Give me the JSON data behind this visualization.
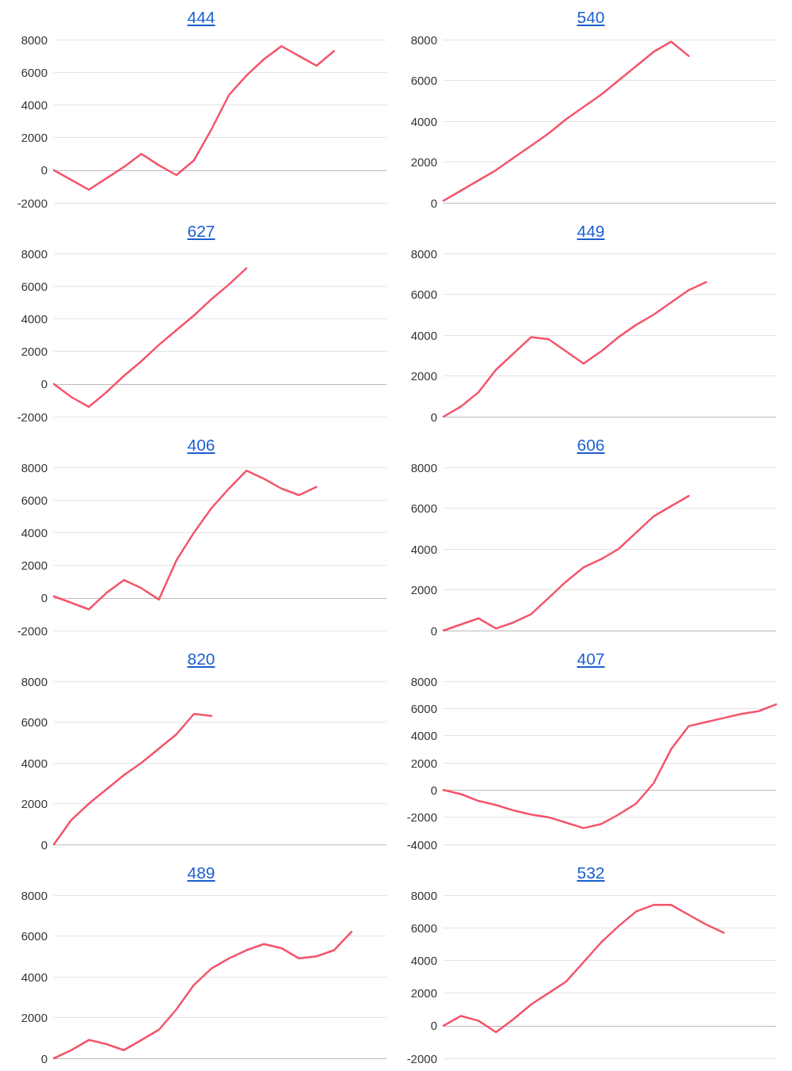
{
  "chart_data": [
    {
      "type": "line",
      "title": "444",
      "categories": [
        null,
        null,
        null,
        null,
        null,
        null,
        null,
        null,
        null,
        null,
        null,
        null,
        null,
        null,
        null,
        null,
        null,
        null,
        null,
        null
      ],
      "series": [
        {
          "color": "#f4546c",
          "values": [
            0,
            -600,
            -1200,
            -500,
            200,
            1000,
            300,
            -300,
            600,
            2500,
            4600,
            5800,
            6800,
            7600,
            7000,
            6400,
            7300,
            null,
            null,
            null
          ]
        }
      ],
      "ylim": [
        -2000,
        8000
      ],
      "yticks": [
        -2000,
        0,
        2000,
        4000,
        6000,
        8000
      ],
      "grid": "y",
      "marker": "none",
      "line_style": "solid",
      "tick_labels": "y"
    },
    {
      "type": "line",
      "title": "540",
      "categories": [
        null,
        null,
        null,
        null,
        null,
        null,
        null,
        null,
        null,
        null,
        null,
        null,
        null,
        null,
        null,
        null,
        null,
        null,
        null,
        null
      ],
      "series": [
        {
          "color": "#f4546c",
          "values": [
            100,
            600,
            1100,
            1600,
            2200,
            2800,
            3400,
            4100,
            4700,
            5300,
            6000,
            6700,
            7400,
            7900,
            7200,
            null,
            null,
            null,
            null,
            null
          ]
        }
      ],
      "ylim": [
        0,
        8000
      ],
      "yticks": [
        0,
        2000,
        4000,
        6000,
        8000
      ],
      "grid": "y",
      "marker": "none",
      "line_style": "solid",
      "tick_labels": "y"
    },
    {
      "type": "line",
      "title": "627",
      "categories": [
        null,
        null,
        null,
        null,
        null,
        null,
        null,
        null,
        null,
        null,
        null,
        null,
        null,
        null,
        null,
        null,
        null,
        null,
        null,
        null
      ],
      "series": [
        {
          "color": "#f4546c",
          "values": [
            0,
            -800,
            -1400,
            -500,
            500,
            1400,
            2400,
            3300,
            4200,
            5200,
            6100,
            7100,
            null,
            null,
            null,
            null,
            null,
            null,
            null,
            null
          ]
        }
      ],
      "ylim": [
        -2000,
        8000
      ],
      "yticks": [
        -2000,
        0,
        2000,
        4000,
        6000,
        8000
      ],
      "grid": "y",
      "marker": "none",
      "line_style": "solid",
      "tick_labels": "y"
    },
    {
      "type": "line",
      "title": "449",
      "categories": [
        null,
        null,
        null,
        null,
        null,
        null,
        null,
        null,
        null,
        null,
        null,
        null,
        null,
        null,
        null,
        null,
        null,
        null,
        null,
        null
      ],
      "series": [
        {
          "color": "#f4546c",
          "values": [
            0,
            500,
            1200,
            2300,
            3100,
            3900,
            3800,
            3200,
            2600,
            3200,
            3900,
            4500,
            5000,
            5600,
            6200,
            6600,
            null,
            null,
            null,
            null
          ]
        }
      ],
      "ylim": [
        0,
        8000
      ],
      "yticks": [
        0,
        2000,
        4000,
        6000,
        8000
      ],
      "grid": "y",
      "marker": "none",
      "line_style": "solid",
      "tick_labels": "y"
    },
    {
      "type": "line",
      "title": "406",
      "categories": [
        null,
        null,
        null,
        null,
        null,
        null,
        null,
        null,
        null,
        null,
        null,
        null,
        null,
        null,
        null,
        null,
        null,
        null,
        null,
        null
      ],
      "series": [
        {
          "color": "#f4546c",
          "values": [
            100,
            -300,
            -700,
            300,
            1100,
            600,
            -100,
            2300,
            4000,
            5500,
            6700,
            7800,
            7300,
            6700,
            6300,
            6800,
            null,
            null,
            null,
            null
          ]
        }
      ],
      "ylim": [
        -2000,
        8000
      ],
      "yticks": [
        -2000,
        0,
        2000,
        4000,
        6000,
        8000
      ],
      "grid": "y",
      "marker": "none",
      "line_style": "solid",
      "tick_labels": "y"
    },
    {
      "type": "line",
      "title": "606",
      "categories": [
        null,
        null,
        null,
        null,
        null,
        null,
        null,
        null,
        null,
        null,
        null,
        null,
        null,
        null,
        null,
        null,
        null,
        null,
        null,
        null
      ],
      "series": [
        {
          "color": "#f4546c",
          "values": [
            0,
            300,
            600,
            100,
            400,
            800,
            1600,
            2400,
            3100,
            3500,
            4000,
            4800,
            5600,
            6100,
            6600,
            null,
            null,
            null,
            null,
            null
          ]
        }
      ],
      "ylim": [
        0,
        8000
      ],
      "yticks": [
        0,
        2000,
        4000,
        6000,
        8000
      ],
      "grid": "y",
      "marker": "none",
      "line_style": "solid",
      "tick_labels": "y"
    },
    {
      "type": "line",
      "title": "820",
      "categories": [
        null,
        null,
        null,
        null,
        null,
        null,
        null,
        null,
        null,
        null,
        null,
        null,
        null,
        null,
        null,
        null,
        null,
        null,
        null,
        null
      ],
      "series": [
        {
          "color": "#f4546c",
          "values": [
            0,
            1200,
            2000,
            2700,
            3400,
            4000,
            4700,
            5400,
            6400,
            6300,
            null,
            null,
            null,
            null,
            null,
            null,
            null,
            null,
            null,
            null
          ]
        }
      ],
      "ylim": [
        0,
        8000
      ],
      "yticks": [
        0,
        2000,
        4000,
        6000,
        8000
      ],
      "grid": "y",
      "marker": "none",
      "line_style": "solid",
      "tick_labels": "y"
    },
    {
      "type": "line",
      "title": "407",
      "categories": [
        null,
        null,
        null,
        null,
        null,
        null,
        null,
        null,
        null,
        null,
        null,
        null,
        null,
        null,
        null,
        null,
        null,
        null,
        null,
        null
      ],
      "series": [
        {
          "color": "#f4546c",
          "values": [
            0,
            -300,
            -800,
            -1100,
            -1500,
            -1800,
            -2000,
            -2400,
            -2800,
            -2500,
            -1800,
            -1000,
            500,
            3000,
            4700,
            5000,
            5300,
            5600,
            5800,
            6300
          ]
        }
      ],
      "ylim": [
        -4000,
        8000
      ],
      "yticks": [
        -4000,
        -2000,
        0,
        2000,
        4000,
        6000,
        8000
      ],
      "grid": "y",
      "marker": "none",
      "line_style": "solid",
      "tick_labels": "y"
    },
    {
      "type": "line",
      "title": "489",
      "categories": [
        null,
        null,
        null,
        null,
        null,
        null,
        null,
        null,
        null,
        null,
        null,
        null,
        null,
        null,
        null,
        null,
        null,
        null,
        null,
        null
      ],
      "series": [
        {
          "color": "#f4546c",
          "values": [
            0,
            400,
            900,
            700,
            400,
            900,
            1400,
            2400,
            3600,
            4400,
            4900,
            5300,
            5600,
            5400,
            4900,
            5000,
            5300,
            6200,
            null,
            null
          ]
        }
      ],
      "ylim": [
        0,
        8000
      ],
      "yticks": [
        0,
        2000,
        4000,
        6000,
        8000
      ],
      "grid": "y",
      "marker": "none",
      "line_style": "solid",
      "tick_labels": "y"
    },
    {
      "type": "line",
      "title": "532",
      "categories": [
        null,
        null,
        null,
        null,
        null,
        null,
        null,
        null,
        null,
        null,
        null,
        null,
        null,
        null,
        null,
        null,
        null,
        null,
        null,
        null
      ],
      "series": [
        {
          "color": "#f4546c",
          "values": [
            0,
            600,
            300,
            -400,
            400,
            1300,
            2000,
            2700,
            3900,
            5100,
            6100,
            7000,
            7400,
            7400,
            6800,
            6200,
            5700,
            null,
            null,
            null
          ]
        }
      ],
      "ylim": [
        -2000,
        8000
      ],
      "yticks": [
        -2000,
        0,
        2000,
        4000,
        6000,
        8000
      ],
      "grid": "y",
      "marker": "none",
      "line_style": "solid",
      "tick_labels": "y"
    }
  ]
}
